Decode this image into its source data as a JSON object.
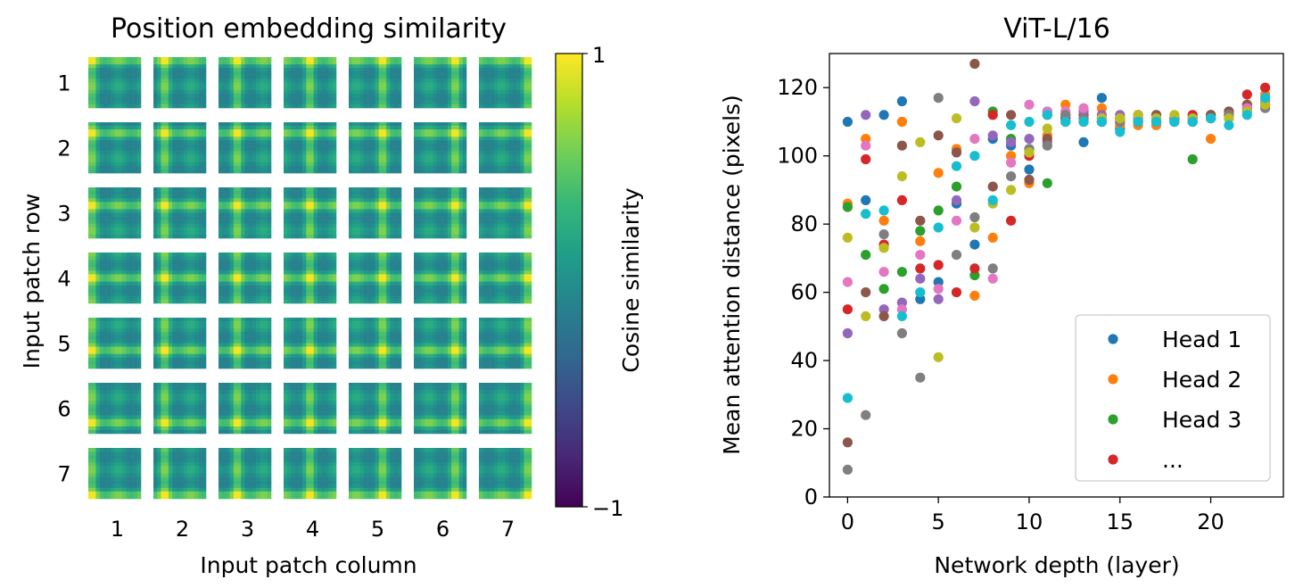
{
  "chart_data": [
    {
      "type": "heatmap",
      "title": "Position embedding similarity",
      "xlabel": "Input patch column",
      "ylabel": "Input patch row",
      "row_tick_labels": [
        "1",
        "2",
        "3",
        "4",
        "5",
        "6",
        "7"
      ],
      "col_tick_labels": [
        "1",
        "2",
        "3",
        "4",
        "5",
        "6",
        "7"
      ],
      "grid_rows": 7,
      "grid_cols": 7,
      "tile_resolution": 14,
      "colorbar": {
        "label": "Cosine similarity",
        "min": -1,
        "max": 1,
        "tick_labels": [
          "1",
          "−1"
        ],
        "colormap": "viridis",
        "colors": [
          "#440154",
          "#482878",
          "#3e4989",
          "#31688e",
          "#26828e",
          "#1f9e89",
          "#35b779",
          "#6ece58",
          "#b5de2b",
          "#fde725"
        ]
      }
    },
    {
      "type": "scatter",
      "title": "ViT-L/16",
      "xlabel": "Network depth (layer)",
      "ylabel": "Mean attention distance (pixels)",
      "xlim": [
        -1,
        24
      ],
      "ylim": [
        0,
        130
      ],
      "xticks": [
        0,
        5,
        10,
        15,
        20
      ],
      "yticks": [
        0,
        20,
        40,
        60,
        80,
        100,
        120
      ],
      "legend_position": "lower-right",
      "legend": [
        {
          "label": "Head 1",
          "color": "#1f77b4"
        },
        {
          "label": "Head 2",
          "color": "#ff7f0e"
        },
        {
          "label": "Head 3",
          "color": "#2ca02c"
        },
        {
          "label": "...",
          "color": "#d62728"
        }
      ],
      "series": [
        {
          "color": "#1f77b4",
          "x": [
            0,
            1,
            2,
            3,
            4,
            5,
            6,
            7,
            8,
            9,
            10,
            11,
            12,
            13,
            14,
            15,
            16,
            17,
            18,
            19,
            20,
            21,
            22,
            23
          ],
          "y": [
            110,
            87,
            112,
            116,
            58,
            63,
            86,
            74,
            105,
            103,
            96,
            113,
            111,
            104,
            117,
            108,
            111,
            110,
            111,
            111,
            112,
            112,
            114,
            115
          ]
        },
        {
          "color": "#ff7f0e",
          "x": [
            0,
            1,
            2,
            3,
            4,
            5,
            6,
            7,
            8,
            9,
            10,
            11,
            12,
            13,
            14,
            15,
            16,
            17,
            18,
            19,
            20,
            21,
            22,
            23
          ],
          "y": [
            86,
            105,
            81,
            110,
            75,
            95,
            102,
            59,
            76,
            100,
            92,
            106,
            115,
            110,
            114,
            109,
            109,
            109,
            111,
            110,
            105,
            111,
            115,
            118
          ]
        },
        {
          "color": "#2ca02c",
          "x": [
            0,
            1,
            2,
            3,
            4,
            5,
            6,
            7,
            8,
            9,
            10,
            11,
            12,
            13,
            14,
            15,
            16,
            17,
            18,
            19,
            20,
            21,
            22,
            23
          ],
          "y": [
            85,
            71,
            61,
            66,
            78,
            84,
            91,
            65,
            113,
            105,
            102,
            92,
            110,
            111,
            110,
            110,
            110,
            110,
            110,
            99,
            111,
            112,
            114,
            115
          ]
        },
        {
          "color": "#d62728",
          "x": [
            0,
            1,
            2,
            3,
            4,
            5,
            6,
            7,
            8,
            9,
            10,
            11,
            12,
            13,
            14,
            15,
            16,
            17,
            18,
            19,
            20,
            21,
            22,
            23
          ],
          "y": [
            55,
            99,
            74,
            87,
            67,
            68,
            60,
            67,
            112,
            81,
            100,
            112,
            111,
            112,
            110,
            111,
            111,
            111,
            111,
            112,
            112,
            112,
            118,
            120
          ]
        },
        {
          "color": "#9467bd",
          "x": [
            0,
            1,
            2,
            3,
            4,
            5,
            6,
            7,
            8,
            9,
            10,
            11,
            12,
            13,
            14,
            15,
            16,
            17,
            18,
            19,
            20,
            21,
            22,
            23
          ],
          "y": [
            48,
            112,
            55,
            57,
            64,
            58,
            87,
            116,
            106,
            104,
            105,
            104,
            112,
            113,
            112,
            112,
            112,
            112,
            110,
            111,
            111,
            113,
            113,
            116
          ]
        },
        {
          "color": "#8c564b",
          "x": [
            0,
            1,
            2,
            3,
            4,
            5,
            6,
            7,
            8,
            9,
            10,
            11,
            12,
            13,
            14,
            15,
            16,
            17,
            18,
            19,
            20,
            21,
            22,
            23
          ],
          "y": [
            16,
            60,
            53,
            103,
            81,
            106,
            101,
            127,
            91,
            112,
            93,
            105,
            112,
            111,
            111,
            111,
            112,
            112,
            111,
            111,
            112,
            113,
            115,
            116
          ]
        },
        {
          "color": "#e377c2",
          "x": [
            0,
            1,
            2,
            3,
            4,
            5,
            6,
            7,
            8,
            9,
            10,
            11,
            12,
            13,
            14,
            15,
            16,
            17,
            18,
            19,
            20,
            21,
            22,
            23
          ],
          "y": [
            63,
            103,
            66,
            55,
            71,
            61,
            81,
            105,
            64,
            98,
            115,
            113,
            113,
            114,
            111,
            110,
            111,
            111,
            111,
            110,
            111,
            112,
            114,
            116
          ]
        },
        {
          "color": "#7f7f7f",
          "x": [
            0,
            1,
            2,
            3,
            4,
            5,
            6,
            7,
            8,
            9,
            10,
            11,
            12,
            13,
            14,
            15,
            16,
            17,
            18,
            19,
            20,
            21,
            22,
            23
          ],
          "y": [
            8,
            24,
            77,
            48,
            35,
            117,
            71,
            82,
            67,
            94,
            102,
            103,
            112,
            111,
            110,
            110,
            110,
            110,
            111,
            110,
            111,
            112,
            113,
            114
          ]
        },
        {
          "color": "#bcbd22",
          "x": [
            0,
            1,
            2,
            3,
            4,
            5,
            6,
            7,
            8,
            9,
            10,
            11,
            12,
            13,
            14,
            15,
            16,
            17,
            18,
            19,
            20,
            21,
            22,
            23
          ],
          "y": [
            76,
            53,
            73,
            94,
            104,
            41,
            111,
            79,
            86,
            90,
            101,
            108,
            110,
            110,
            111,
            111,
            112,
            111,
            112,
            111,
            111,
            111,
            113,
            115
          ]
        },
        {
          "color": "#17becf",
          "x": [
            0,
            1,
            2,
            3,
            4,
            5,
            6,
            7,
            8,
            9,
            10,
            11,
            12,
            13,
            14,
            15,
            16,
            17,
            18,
            19,
            20,
            21,
            22,
            23
          ],
          "y": [
            29,
            83,
            84,
            53,
            60,
            79,
            97,
            100,
            87,
            109,
            110,
            112,
            110,
            110,
            110,
            107,
            110,
            110,
            110,
            110,
            111,
            109,
            112,
            117
          ]
        }
      ]
    }
  ]
}
